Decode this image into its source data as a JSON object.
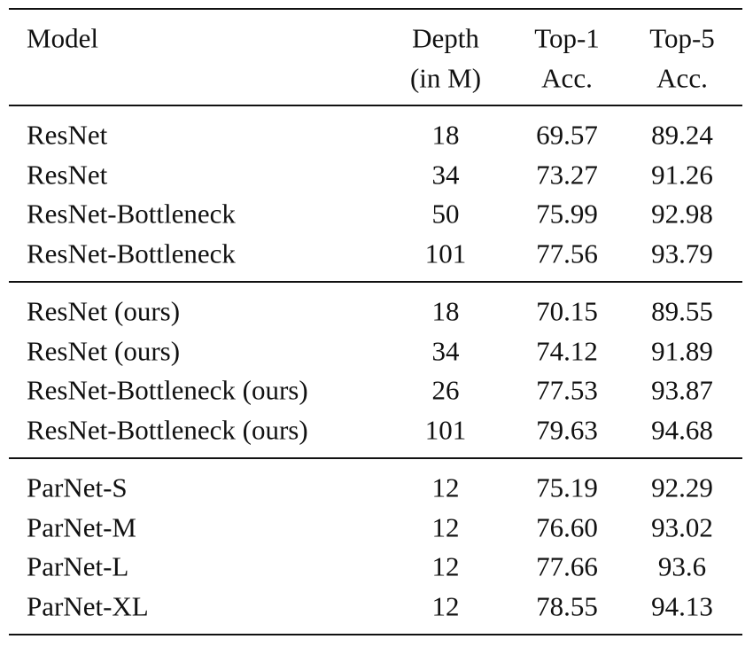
{
  "table": {
    "header": [
      [
        "Model"
      ],
      [
        "Depth",
        "(in M)"
      ],
      [
        "Top-1",
        "Acc."
      ],
      [
        "Top-5",
        "Acc."
      ]
    ],
    "groups": [
      [
        [
          "ResNet",
          "18",
          "69.57",
          "89.24"
        ],
        [
          "ResNet",
          "34",
          "73.27",
          "91.26"
        ],
        [
          "ResNet-Bottleneck",
          "50",
          "75.99",
          "92.98"
        ],
        [
          "ResNet-Bottleneck",
          "101",
          "77.56",
          "93.79"
        ]
      ],
      [
        [
          "ResNet (ours)",
          "18",
          "70.15",
          "89.55"
        ],
        [
          "ResNet (ours)",
          "34",
          "74.12",
          "91.89"
        ],
        [
          "ResNet-Bottleneck (ours)",
          "26",
          "77.53",
          "93.87"
        ],
        [
          "ResNet-Bottleneck (ours)",
          "101",
          "79.63",
          "94.68"
        ]
      ],
      [
        [
          "ParNet-S",
          "12",
          "75.19",
          "92.29"
        ],
        [
          "ParNet-M",
          "12",
          "76.60",
          "93.02"
        ],
        [
          "ParNet-L",
          "12",
          "77.66",
          "93.6"
        ],
        [
          "ParNet-XL",
          "12",
          "78.55",
          "94.13"
        ]
      ]
    ]
  }
}
